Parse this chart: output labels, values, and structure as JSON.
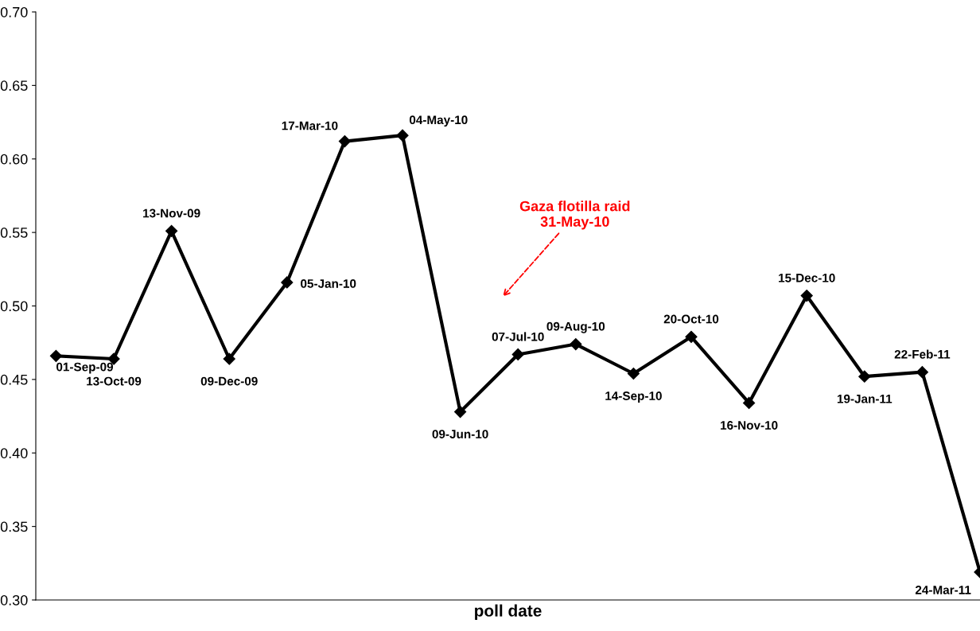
{
  "chart_data": {
    "type": "line",
    "xlabel": "poll date",
    "categories": [
      null,
      null,
      null,
      null,
      null,
      null,
      null,
      null,
      null,
      null,
      null,
      null,
      null,
      null,
      null,
      null,
      null
    ],
    "series": [
      {
        "color": "#000000",
        "values": [
          0.466,
          0.464,
          0.551,
          0.464,
          0.516,
          0.612,
          0.616,
          0.428,
          0.467,
          0.474,
          0.454,
          0.479,
          0.434,
          0.507,
          0.452,
          0.455,
          0.319
        ],
        "value_labels": [
          "01-Sep-09",
          "13-Oct-09",
          "13-Nov-09",
          "09-Dec-09",
          "05-Jan-10",
          "17-Mar-10",
          "04-May-10",
          "09-Jun-10",
          "07-Jul-10",
          "09-Aug-10",
          "14-Sep-10",
          "20-Oct-10",
          "16-Nov-10",
          "15-Dec-10",
          "19-Jan-11",
          "22-Feb-11",
          "24-Mar-11"
        ]
      }
    ],
    "ylim": [
      0.3,
      0.7
    ],
    "yticks": [
      {
        "value": 0.3,
        "label": "0.30"
      },
      {
        "value": 0.35,
        "label": "0.35"
      },
      {
        "value": 0.4,
        "label": "0.40"
      },
      {
        "value": 0.45,
        "label": "0.45"
      },
      {
        "value": 0.5,
        "label": "0.50"
      },
      {
        "value": 0.55,
        "label": "0.55"
      },
      {
        "value": 0.6,
        "label": "0.60"
      },
      {
        "value": 0.65,
        "label": "0.65"
      },
      {
        "value": 0.7,
        "label": "0.70"
      }
    ],
    "tick_labels": "y",
    "marker": "diamond",
    "line_style": "solid",
    "annotations": [
      "Gaza flotilla raid\n31-May-10"
    ]
  }
}
